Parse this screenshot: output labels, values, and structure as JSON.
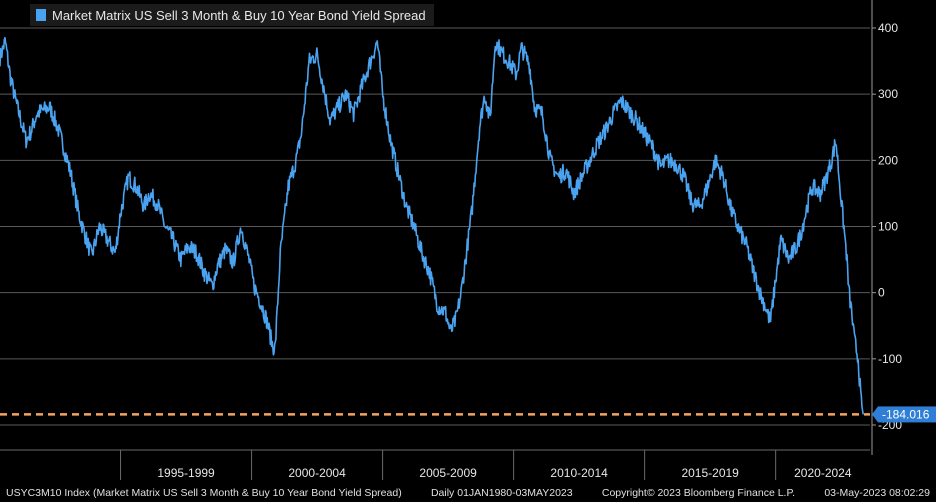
{
  "colors": {
    "background": "#000000",
    "series": "#4aa3f0",
    "grid": "#5a5a5a",
    "reference_line": "#f4a460",
    "badge": "#2f7fd6",
    "legend_bg": "#1b1b1b"
  },
  "legend": {
    "label": "Market Matrix US Sell 3 Month & Buy 10 Year Bond Yield Spread"
  },
  "footer": {
    "ticker": "USYC3M10 Index (Market Matrix US Sell 3 Month & Buy 10 Year Bond Yield Spread)",
    "range": "Daily 01JAN1980-03MAY2023",
    "copyright": "Copyright© 2023 Bloomberg Finance L.P.",
    "timestamp": "03-May-2023 08:02:29"
  },
  "chart_data": {
    "type": "line",
    "title": "",
    "xlabel": "",
    "ylabel": "",
    "ylim": [
      -210,
      420
    ],
    "xlim": [
      1990.4,
      2023.6
    ],
    "yticks": [
      400,
      300,
      200,
      100,
      0,
      -100,
      -200
    ],
    "x_categories": [
      {
        "label": "1995-1999",
        "start": 1995,
        "end": 2000
      },
      {
        "label": "2000-2004",
        "start": 2000,
        "end": 2005
      },
      {
        "label": "2005-2009",
        "start": 2005,
        "end": 2010
      },
      {
        "label": "2010-2014",
        "start": 2010,
        "end": 2015
      },
      {
        "label": "2015-2019",
        "start": 2015,
        "end": 2020
      },
      {
        "label": "2020-2024",
        "start": 2020,
        "end": 2025
      }
    ],
    "grid": true,
    "legend_position": "top-left",
    "reference_line": {
      "value": -184.016,
      "style": "dashed"
    },
    "last_value": {
      "value": -184.016,
      "label": "-184.016"
    },
    "series": [
      {
        "name": "Market Matrix US Sell 3 Month & Buy 10 Year Bond Yield Spread",
        "x": [
          1990.4,
          1990.6,
          1990.8,
          1991.0,
          1991.2,
          1991.4,
          1991.6,
          1991.8,
          1992.0,
          1992.3,
          1992.6,
          1992.9,
          1993.1,
          1993.4,
          1993.7,
          1993.9,
          1994.2,
          1994.5,
          1994.8,
          1995.0,
          1995.3,
          1995.6,
          1995.9,
          1996.1,
          1996.4,
          1996.7,
          1997.0,
          1997.3,
          1997.6,
          1997.9,
          1998.2,
          1998.5,
          1998.7,
          1999.0,
          1999.3,
          1999.6,
          1999.9,
          2000.1,
          2000.4,
          2000.6,
          2000.8,
          2000.9,
          2001.1,
          2001.4,
          2001.7,
          2001.9,
          2002.2,
          2002.5,
          2002.8,
          2003.0,
          2003.3,
          2003.6,
          2003.9,
          2004.2,
          2004.5,
          2004.8,
          2005.0,
          2005.3,
          2005.6,
          2005.9,
          2006.2,
          2006.5,
          2006.8,
          2007.1,
          2007.4,
          2007.6,
          2007.8,
          2008.0,
          2008.2,
          2008.4,
          2008.7,
          2008.9,
          2009.1,
          2009.3,
          2009.6,
          2009.8,
          2010.1,
          2010.3,
          2010.6,
          2010.8,
          2011.1,
          2011.4,
          2011.7,
          2012.0,
          2012.3,
          2012.6,
          2012.9,
          2013.2,
          2013.5,
          2013.8,
          2014.1,
          2014.4,
          2014.7,
          2015.0,
          2015.3,
          2015.6,
          2015.9,
          2016.2,
          2016.5,
          2016.8,
          2017.1,
          2017.4,
          2017.7,
          2018.0,
          2018.3,
          2018.6,
          2018.9,
          2019.1,
          2019.4,
          2019.6,
          2019.8,
          2020.0,
          2020.2,
          2020.5,
          2020.8,
          2021.0,
          2021.2,
          2021.4,
          2021.7,
          2021.9,
          2022.1,
          2022.3,
          2022.5,
          2022.7,
          2022.8,
          2022.9,
          2023.0,
          2023.15,
          2023.25,
          2023.34
        ],
        "values": [
          355,
          380,
          325,
          290,
          260,
          230,
          245,
          270,
          275,
          280,
          250,
          210,
          180,
          120,
          80,
          55,
          100,
          80,
          60,
          120,
          175,
          160,
          130,
          150,
          135,
          100,
          80,
          50,
          70,
          60,
          30,
          10,
          40,
          65,
          45,
          100,
          50,
          10,
          -20,
          -45,
          -80,
          -85,
          60,
          160,
          200,
          240,
          350,
          360,
          300,
          260,
          280,
          300,
          270,
          310,
          345,
          380,
          300,
          230,
          180,
          130,
          100,
          60,
          30,
          -20,
          -30,
          -60,
          -40,
          0,
          60,
          120,
          250,
          300,
          260,
          380,
          360,
          350,
          330,
          370,
          345,
          280,
          270,
          200,
          175,
          185,
          150,
          175,
          200,
          225,
          245,
          270,
          290,
          275,
          260,
          240,
          220,
          190,
          200,
          195,
          175,
          135,
          130,
          160,
          200,
          175,
          125,
          95,
          70,
          40,
          0,
          -20,
          -45,
          20,
          80,
          50,
          70,
          95,
          130,
          160,
          150,
          170,
          195,
          230,
          140,
          60,
          0,
          -30,
          -70,
          -100,
          -160,
          -184
        ]
      }
    ]
  }
}
